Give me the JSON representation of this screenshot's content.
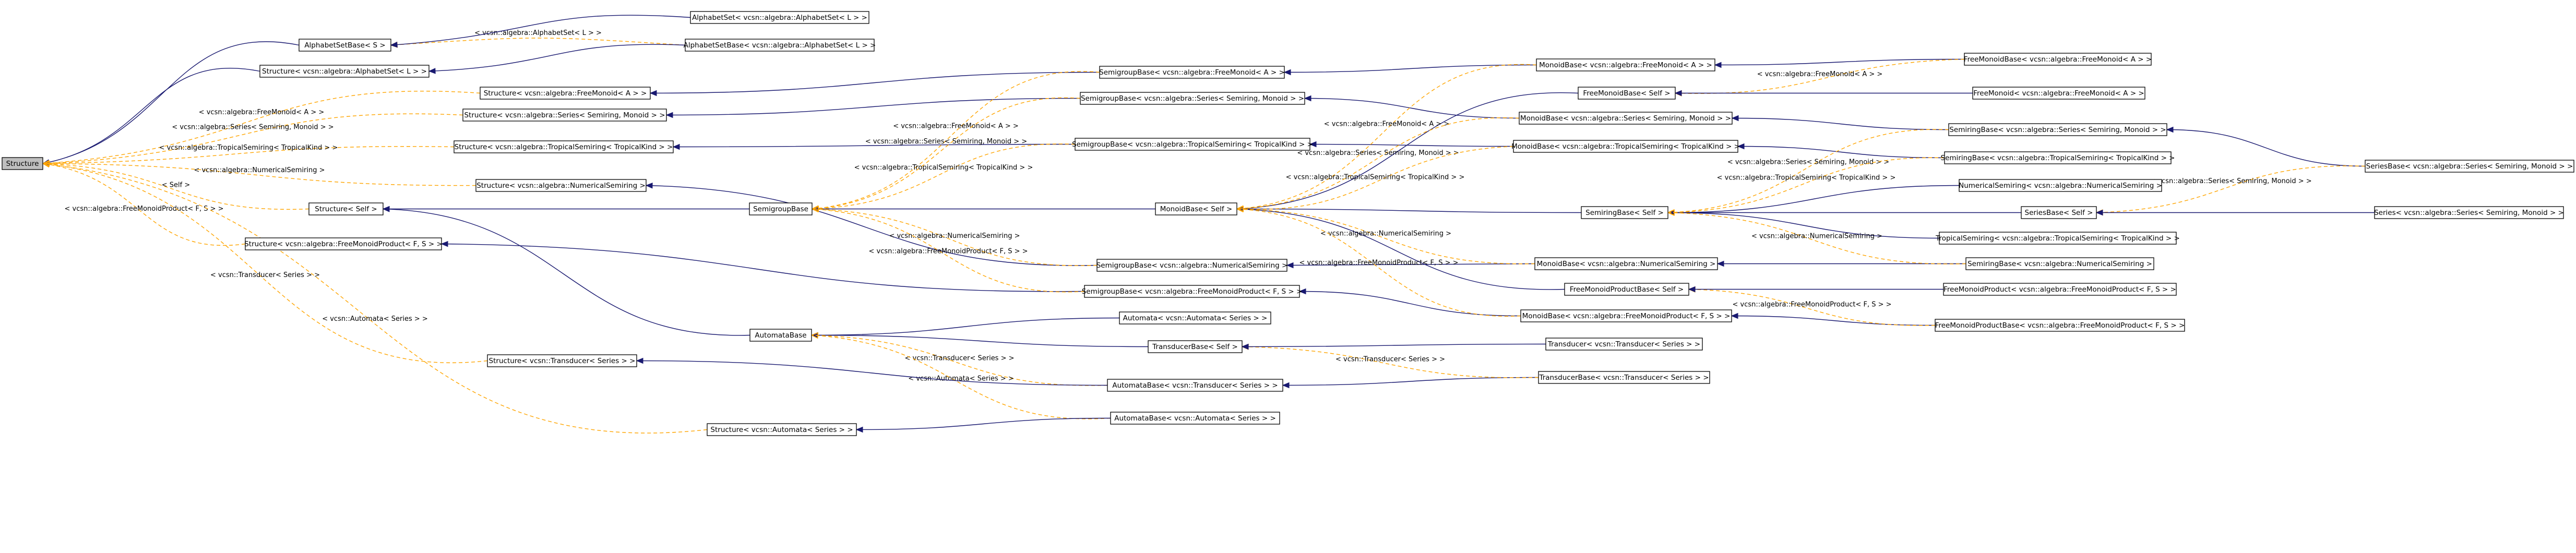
{
  "diagram": {
    "type": "class-inheritance-graph",
    "colors": {
      "inheritance_edge": "#191970",
      "template_edge": "#ffa500",
      "root_fill": "#bfbfbf",
      "node_border": "#000000"
    },
    "nodes": {
      "structure": "Structure",
      "alphabetsetbase_s": "AlphabetSetBase< S >",
      "alphabetset_l": "AlphabetSet< vcsn::algebra::AlphabetSet< L > >",
      "alphabetsetbase_l": "AlphabetSetBase< vcsn::algebra::AlphabetSet< L > >",
      "structure_alphabetset": "Structure< vcsn::algebra::AlphabetSet< L > >",
      "structure_freemonoid": "Structure< vcsn::algebra::FreeMonoid< A > >",
      "structure_series": "Structure< vcsn::algebra::Series< Semiring, Monoid > >",
      "structure_tropical": "Structure< vcsn::algebra::TropicalSemiring< TropicalKind > >",
      "structure_numerical": "Structure< vcsn::algebra::NumericalSemiring >",
      "structure_self": "Structure< Self >",
      "structure_fmp": "Structure< vcsn::algebra::FreeMonoidProduct< F, S > >",
      "semigroupbase": "SemigroupBase",
      "semigroupbase_freemonoid": "SemigroupBase< vcsn::algebra::FreeMonoid< A > >",
      "semigroupbase_series": "SemigroupBase< vcsn::algebra::Series< Semiring, Monoid > >",
      "semigroupbase_tropical": "SemigroupBase< vcsn::algebra::TropicalSemiring< TropicalKind > >",
      "monoidbase_self": "MonoidBase< Self >",
      "semigroupbase_numerical": "SemigroupBase< vcsn::algebra::NumericalSemiring >",
      "semigroupbase_fmp": "SemigroupBase< vcsn::algebra::FreeMonoidProduct< F, S > >",
      "monoidbase_freemonoid": "MonoidBase< vcsn::algebra::FreeMonoid< A > >",
      "freemonoidbase_a": "FreeMonoidBase< vcsn::algebra::FreeMonoid< A > >",
      "freemonoidbase_self": "FreeMonoidBase< Self >",
      "freemonoid_a": "FreeMonoid< vcsn::algebra::FreeMonoid< A > >",
      "monoidbase_series": "MonoidBase< vcsn::algebra::Series< Semiring, Monoid > >",
      "monoidbase_tropical": "MonoidBase< vcsn::algebra::TropicalSemiring< TropicalKind > >",
      "semiringbase_series": "SemiringBase< vcsn::algebra::Series< Semiring, Monoid > >",
      "semiringbase_tropical": "SemiringBase< vcsn::algebra::TropicalSemiring< TropicalKind > >",
      "seriesbase_series": "SeriesBase< vcsn::algebra::Series< Semiring, Monoid > >",
      "semiringbase_self": "SemiringBase< Self >",
      "numericalsemiring": "NumericalSemiring< vcsn::algebra::NumericalSemiring >",
      "seriesbase_self": "SeriesBase< Self >",
      "series_series": "Series< vcsn::algebra::Series< Semiring, Monoid > >",
      "tropicalsemiring": "TropicalSemiring< vcsn::algebra::TropicalSemiring< TropicalKind > >",
      "monoidbase_numerical": "MonoidBase< vcsn::algebra::NumericalSemiring >",
      "semiringbase_numerical": "SemiringBase< vcsn::algebra::NumericalSemiring >",
      "fmpbase_self": "FreeMonoidProductBase< Self >",
      "fmp_fs": "FreeMonoidProduct< vcsn::algebra::FreeMonoidProduct< F, S > >",
      "monoidbase_fmp": "MonoidBase< vcsn::algebra::FreeMonoidProduct< F, S > >",
      "fmpbase_fs": "FreeMonoidProductBase< vcsn::algebra::FreeMonoidProduct< F, S > >",
      "automatabase": "AutomataBase",
      "automata_automaton": "Automata< vcsn::Automata< Series > >",
      "transducerbase_self": "TransducerBase< Self >",
      "transducer_transducer": "Transducer< vcsn::Transducer< Series > >",
      "structure_transducer": "Structure< vcsn::Transducer< Series > >",
      "automatabase_transducer": "AutomataBase< vcsn::Transducer< Series > >",
      "transducerbase_transducer": "TransducerBase< vcsn::Transducer< Series > >",
      "structure_automata": "Structure< vcsn::Automata< Series > >",
      "automatabase_automata": "AutomataBase< vcsn::Automata< Series > >"
    },
    "edge_labels": {
      "alphabetset_l": "< vcsn::algebra::AlphabetSet< L > >",
      "alphabetset_l_outer": "< vcsn::algebra::AlphabetSet< L > >",
      "freemonoid_a": "< vcsn::algebra::FreeMonoid< A > >",
      "series_sm": "< vcsn::algebra::Series< Semiring, Monoid > >",
      "tropical_tk": "< vcsn::algebra::TropicalSemiring< TropicalKind > >",
      "numerical": "< vcsn::algebra::NumericalSemiring >",
      "self": "< Self >",
      "fmp_fs": "< vcsn::algebra::FreeMonoidProduct< F, S > >",
      "transducer_series": "< vcsn::Transducer< Series > >",
      "automata_series": "< vcsn::Automata< Series > >"
    }
  }
}
